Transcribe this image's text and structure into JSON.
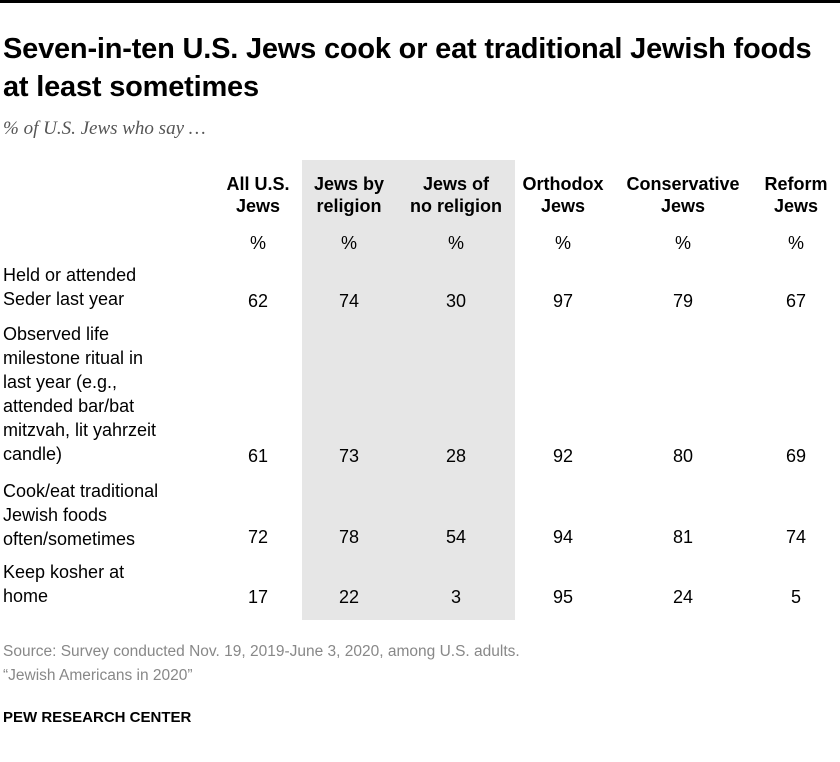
{
  "title": "Seven-in-ten U.S. Jews cook or eat traditional Jewish foods at least sometimes",
  "subtitle": "% of U.S. Jews who say …",
  "chart_data": {
    "type": "table",
    "columns": [
      {
        "line1": "All U.S.",
        "line2": "Jews",
        "unit": "%"
      },
      {
        "line1": "Jews by",
        "line2": "religion",
        "unit": "%"
      },
      {
        "line1": "Jews of",
        "line2": "no religion",
        "unit": "%"
      },
      {
        "line1": "Orthodox",
        "line2": "Jews",
        "unit": "%"
      },
      {
        "line1": "Conservative",
        "line2": "Jews",
        "unit": "%"
      },
      {
        "line1": "Reform",
        "line2": "Jews",
        "unit": "%"
      }
    ],
    "rows": [
      {
        "label": [
          "Held or attended",
          "Seder last year"
        ],
        "values": [
          62,
          74,
          30,
          97,
          79,
          67
        ]
      },
      {
        "label": [
          "Observed life",
          "milestone ritual in",
          "last year (e.g.,",
          "attended bar/bat",
          "mitzvah, lit yahrzeit",
          "candle)"
        ],
        "values": [
          61,
          73,
          28,
          92,
          80,
          69
        ]
      },
      {
        "label": [
          "Cook/eat traditional",
          "Jewish foods",
          "often/sometimes"
        ],
        "values": [
          72,
          78,
          54,
          94,
          81,
          74
        ]
      },
      {
        "label": [
          "Keep kosher at",
          "home"
        ],
        "values": [
          17,
          22,
          3,
          95,
          24,
          5
        ]
      }
    ],
    "highlighted_columns": [
      "Jews by religion",
      "Jews of no religion"
    ]
  },
  "source": {
    "line1": "Source: Survey conducted Nov. 19, 2019-June 3, 2020, among U.S. adults.",
    "line2": "“Jewish Americans in 2020”"
  },
  "brand": "PEW RESEARCH CENTER"
}
